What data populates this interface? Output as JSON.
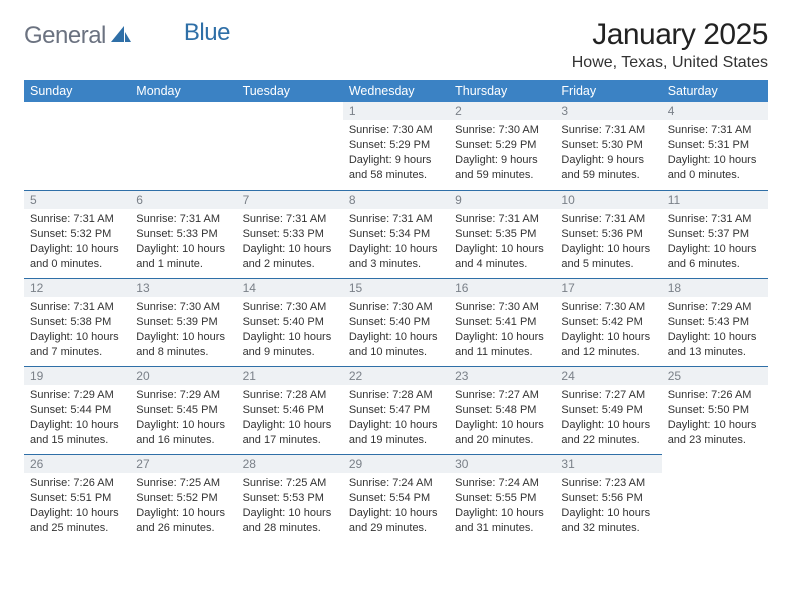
{
  "brand": {
    "part1": "General",
    "part2": "Blue"
  },
  "title": "January 2025",
  "location": "Howe, Texas, United States",
  "colors": {
    "header_bg": "#3b82c4",
    "daynum_bg": "#eef1f4",
    "daynum_color": "#7a8088",
    "rule": "#2f6fa7",
    "brand_gray": "#6b7280",
    "brand_blue": "#2f6fa7"
  },
  "weekdays": [
    "Sunday",
    "Monday",
    "Tuesday",
    "Wednesday",
    "Thursday",
    "Friday",
    "Saturday"
  ],
  "weeks": [
    [
      null,
      null,
      null,
      {
        "n": "1",
        "sunrise": "7:30 AM",
        "sunset": "5:29 PM",
        "day_h": 9,
        "day_m": 58,
        "m_word": "minutes"
      },
      {
        "n": "2",
        "sunrise": "7:30 AM",
        "sunset": "5:29 PM",
        "day_h": 9,
        "day_m": 59,
        "m_word": "minutes"
      },
      {
        "n": "3",
        "sunrise": "7:31 AM",
        "sunset": "5:30 PM",
        "day_h": 9,
        "day_m": 59,
        "m_word": "minutes"
      },
      {
        "n": "4",
        "sunrise": "7:31 AM",
        "sunset": "5:31 PM",
        "day_h": 10,
        "day_m": 0,
        "m_word": "minutes"
      }
    ],
    [
      {
        "n": "5",
        "sunrise": "7:31 AM",
        "sunset": "5:32 PM",
        "day_h": 10,
        "day_m": 0,
        "m_word": "minutes"
      },
      {
        "n": "6",
        "sunrise": "7:31 AM",
        "sunset": "5:33 PM",
        "day_h": 10,
        "day_m": 1,
        "m_word": "minute"
      },
      {
        "n": "7",
        "sunrise": "7:31 AM",
        "sunset": "5:33 PM",
        "day_h": 10,
        "day_m": 2,
        "m_word": "minutes"
      },
      {
        "n": "8",
        "sunrise": "7:31 AM",
        "sunset": "5:34 PM",
        "day_h": 10,
        "day_m": 3,
        "m_word": "minutes"
      },
      {
        "n": "9",
        "sunrise": "7:31 AM",
        "sunset": "5:35 PM",
        "day_h": 10,
        "day_m": 4,
        "m_word": "minutes"
      },
      {
        "n": "10",
        "sunrise": "7:31 AM",
        "sunset": "5:36 PM",
        "day_h": 10,
        "day_m": 5,
        "m_word": "minutes"
      },
      {
        "n": "11",
        "sunrise": "7:31 AM",
        "sunset": "5:37 PM",
        "day_h": 10,
        "day_m": 6,
        "m_word": "minutes"
      }
    ],
    [
      {
        "n": "12",
        "sunrise": "7:31 AM",
        "sunset": "5:38 PM",
        "day_h": 10,
        "day_m": 7,
        "m_word": "minutes"
      },
      {
        "n": "13",
        "sunrise": "7:30 AM",
        "sunset": "5:39 PM",
        "day_h": 10,
        "day_m": 8,
        "m_word": "minutes"
      },
      {
        "n": "14",
        "sunrise": "7:30 AM",
        "sunset": "5:40 PM",
        "day_h": 10,
        "day_m": 9,
        "m_word": "minutes"
      },
      {
        "n": "15",
        "sunrise": "7:30 AM",
        "sunset": "5:40 PM",
        "day_h": 10,
        "day_m": 10,
        "m_word": "minutes"
      },
      {
        "n": "16",
        "sunrise": "7:30 AM",
        "sunset": "5:41 PM",
        "day_h": 10,
        "day_m": 11,
        "m_word": "minutes"
      },
      {
        "n": "17",
        "sunrise": "7:30 AM",
        "sunset": "5:42 PM",
        "day_h": 10,
        "day_m": 12,
        "m_word": "minutes"
      },
      {
        "n": "18",
        "sunrise": "7:29 AM",
        "sunset": "5:43 PM",
        "day_h": 10,
        "day_m": 13,
        "m_word": "minutes"
      }
    ],
    [
      {
        "n": "19",
        "sunrise": "7:29 AM",
        "sunset": "5:44 PM",
        "day_h": 10,
        "day_m": 15,
        "m_word": "minutes"
      },
      {
        "n": "20",
        "sunrise": "7:29 AM",
        "sunset": "5:45 PM",
        "day_h": 10,
        "day_m": 16,
        "m_word": "minutes"
      },
      {
        "n": "21",
        "sunrise": "7:28 AM",
        "sunset": "5:46 PM",
        "day_h": 10,
        "day_m": 17,
        "m_word": "minutes"
      },
      {
        "n": "22",
        "sunrise": "7:28 AM",
        "sunset": "5:47 PM",
        "day_h": 10,
        "day_m": 19,
        "m_word": "minutes"
      },
      {
        "n": "23",
        "sunrise": "7:27 AM",
        "sunset": "5:48 PM",
        "day_h": 10,
        "day_m": 20,
        "m_word": "minutes"
      },
      {
        "n": "24",
        "sunrise": "7:27 AM",
        "sunset": "5:49 PM",
        "day_h": 10,
        "day_m": 22,
        "m_word": "minutes"
      },
      {
        "n": "25",
        "sunrise": "7:26 AM",
        "sunset": "5:50 PM",
        "day_h": 10,
        "day_m": 23,
        "m_word": "minutes"
      }
    ],
    [
      {
        "n": "26",
        "sunrise": "7:26 AM",
        "sunset": "5:51 PM",
        "day_h": 10,
        "day_m": 25,
        "m_word": "minutes"
      },
      {
        "n": "27",
        "sunrise": "7:25 AM",
        "sunset": "5:52 PM",
        "day_h": 10,
        "day_m": 26,
        "m_word": "minutes"
      },
      {
        "n": "28",
        "sunrise": "7:25 AM",
        "sunset": "5:53 PM",
        "day_h": 10,
        "day_m": 28,
        "m_word": "minutes"
      },
      {
        "n": "29",
        "sunrise": "7:24 AM",
        "sunset": "5:54 PM",
        "day_h": 10,
        "day_m": 29,
        "m_word": "minutes"
      },
      {
        "n": "30",
        "sunrise": "7:24 AM",
        "sunset": "5:55 PM",
        "day_h": 10,
        "day_m": 31,
        "m_word": "minutes"
      },
      {
        "n": "31",
        "sunrise": "7:23 AM",
        "sunset": "5:56 PM",
        "day_h": 10,
        "day_m": 32,
        "m_word": "minutes"
      },
      null
    ]
  ]
}
